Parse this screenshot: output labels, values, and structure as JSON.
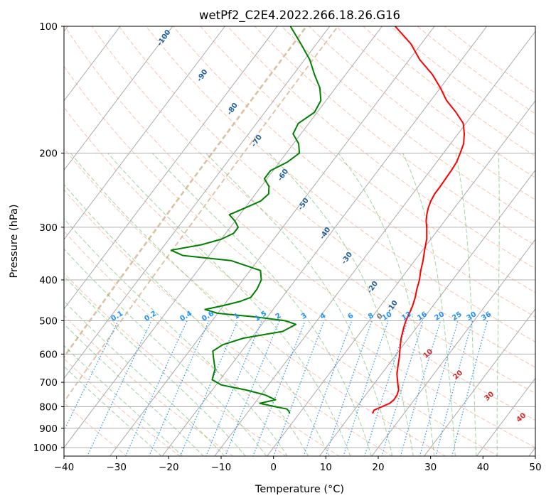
{
  "chart_data": {
    "type": "line",
    "subtype": "skew-t log-p diagram",
    "title": "wetPf2_C2E4.2022.266.18.26.G16",
    "xlabel": "Temperature (°C)",
    "ylabel": "Pressure (hPa)",
    "xlim": [
      -40,
      50
    ],
    "ylim": [
      1050,
      100
    ],
    "y_scale": "log",
    "x_ticks": [
      "−40",
      "−30",
      "−20",
      "−10",
      "0",
      "10",
      "20",
      "30",
      "40",
      "50"
    ],
    "x_tick_values": [
      -40,
      -30,
      -20,
      -10,
      0,
      10,
      20,
      30,
      40,
      50
    ],
    "y_ticks": [
      "1000",
      "900",
      "800",
      "700",
      "600",
      "500",
      "400",
      "300",
      "200",
      "100"
    ],
    "y_tick_values": [
      1000,
      900,
      800,
      700,
      600,
      500,
      400,
      300,
      200,
      100
    ],
    "grid": true,
    "colors": {
      "temperature": "#ff0000",
      "dewpoint": "#008000",
      "isotherm": "#aaaaaa",
      "dry_adiabat": "#f4a582",
      "moist_adiabat": "#2ca02c",
      "mixing_ratio": "#1e90ff",
      "wet_bulb_label": "#1f5f9f",
      "theta_e": "#c8a070",
      "dry_label": "#d62728"
    },
    "series": [
      {
        "role": "temperature",
        "pressure": [
          830,
          815,
          800,
          785,
          770,
          750,
          730,
          700,
          670,
          640,
          610,
          580,
          550,
          520,
          500,
          480,
          460,
          440,
          420,
          400,
          380,
          360,
          340,
          320,
          300,
          290,
          280,
          270,
          260,
          250,
          240,
          230,
          220,
          210,
          200,
          190,
          180,
          170,
          160,
          150,
          140,
          130,
          120,
          110,
          100
        ],
        "values": [
          14.0,
          13.8,
          14.8,
          15.8,
          16.1,
          16.0,
          15.6,
          14.3,
          13.0,
          12.0,
          11.0,
          9.8,
          8.6,
          7.6,
          7.0,
          6.6,
          6.1,
          5.4,
          4.5,
          3.7,
          2.6,
          1.6,
          0.4,
          -0.8,
          -2.5,
          -3.5,
          -4.3,
          -5.0,
          -5.5,
          -5.8,
          -5.8,
          -5.9,
          -6.0,
          -6.2,
          -6.8,
          -7.5,
          -8.8,
          -10.5,
          -13.5,
          -17.0,
          -20.0,
          -23.5,
          -28.0,
          -32.0,
          -37.5
        ]
      },
      {
        "role": "dewpoint",
        "pressure": [
          830,
          820,
          810,
          800,
          785,
          770,
          750,
          730,
          710,
          690,
          670,
          650,
          630,
          610,
          590,
          570,
          550,
          530,
          510,
          500,
          490,
          480,
          470,
          460,
          450,
          440,
          420,
          400,
          380,
          360,
          350,
          340,
          330,
          320,
          310,
          300,
          290,
          280,
          270,
          260,
          250,
          240,
          230,
          220,
          210,
          200,
          190,
          180,
          170,
          160,
          150,
          140,
          130,
          120,
          110,
          100
        ],
        "values": [
          -1.8,
          -2.3,
          -3.0,
          -5.5,
          -9.0,
          -6.5,
          -9.2,
          -13.5,
          -19.0,
          -21.5,
          -22.0,
          -22.5,
          -23.5,
          -24.5,
          -25.5,
          -24.5,
          -21.5,
          -15.0,
          -13.5,
          -16.0,
          -22.0,
          -30.0,
          -33.0,
          -30.0,
          -27.5,
          -26.0,
          -26.0,
          -26.5,
          -28.0,
          -35.0,
          -45.0,
          -48.0,
          -43.0,
          -40.0,
          -38.5,
          -38.5,
          -40.0,
          -42.0,
          -40.0,
          -38.0,
          -37.5,
          -38.5,
          -40.5,
          -40.5,
          -38.5,
          -37.5,
          -39.0,
          -41.5,
          -42.0,
          -40.5,
          -41.0,
          -43.0,
          -46.0,
          -49.0,
          -53.0,
          -57.5
        ]
      }
    ],
    "mixing_ratio_labels": [
      "0.1",
      "0.2",
      "0.4",
      "0.6",
      "1",
      "1.5",
      "2",
      "3",
      "4",
      "6",
      "8",
      "10",
      "13",
      "16",
      "20",
      "25",
      "30",
      "36"
    ],
    "mixing_ratio_values": [
      0.1,
      0.2,
      0.4,
      0.6,
      1,
      1.5,
      2,
      3,
      4,
      6,
      8,
      10,
      13,
      16,
      20,
      25,
      30,
      36
    ],
    "wet_bulb_labels": [
      "-100",
      "-90",
      "-80",
      "-70",
      "-60",
      "-50",
      "-40",
      "-30",
      "-20",
      "-10"
    ],
    "wet_bulb_values": [
      -100,
      -90,
      -80,
      -70,
      -60,
      -50,
      -40,
      -30,
      -20,
      -10
    ],
    "zero_label": "0",
    "dry_adiabat_labels": [
      "10",
      "20",
      "30",
      "40"
    ],
    "dry_adiabat_values": [
      10,
      20,
      30,
      40
    ]
  }
}
